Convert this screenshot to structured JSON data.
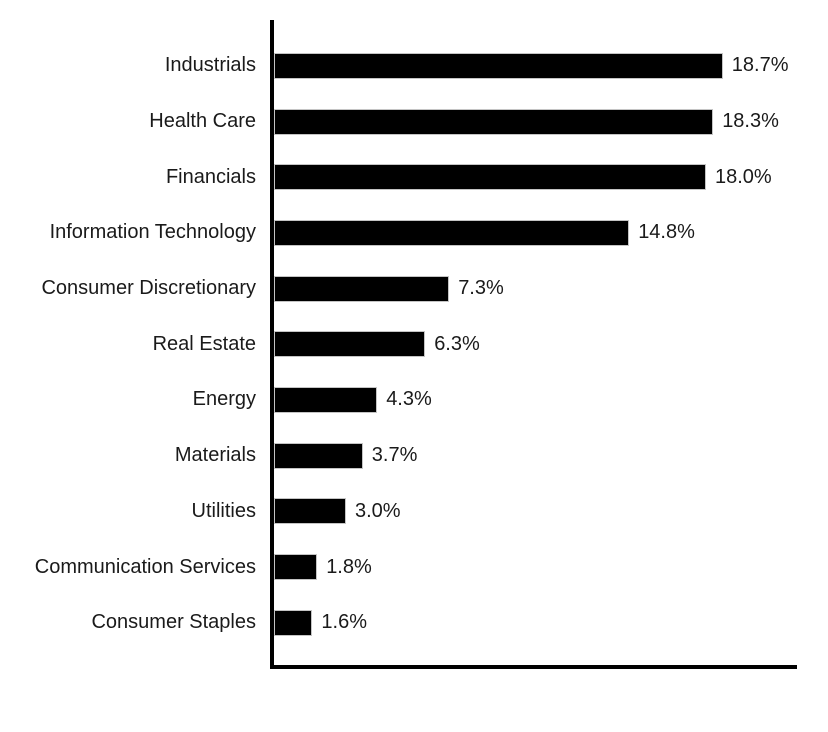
{
  "chart_data": {
    "type": "bar",
    "orientation": "horizontal",
    "title": "",
    "xlabel": "",
    "ylabel": "",
    "grid": false,
    "legend": false,
    "xlim": [
      0,
      21.8
    ],
    "bar_color": "#000000",
    "axis_color": "#000000",
    "label_color": "#1a1a1a",
    "categories": [
      "Industrials",
      "Health Care",
      "Financials",
      "Information Technology",
      "Consumer Discretionary",
      "Real Estate",
      "Energy",
      "Materials",
      "Utilities",
      "Communication Services",
      "Consumer Staples"
    ],
    "values": [
      18.7,
      18.3,
      18.0,
      14.8,
      7.3,
      6.3,
      4.3,
      3.7,
      3.0,
      1.8,
      1.6
    ],
    "value_labels": [
      "18.7%",
      "18.3%",
      "18.0%",
      "14.8%",
      "7.3%",
      "6.3%",
      "4.3%",
      "3.7%",
      "3.0%",
      "1.8%",
      "1.6%"
    ]
  }
}
